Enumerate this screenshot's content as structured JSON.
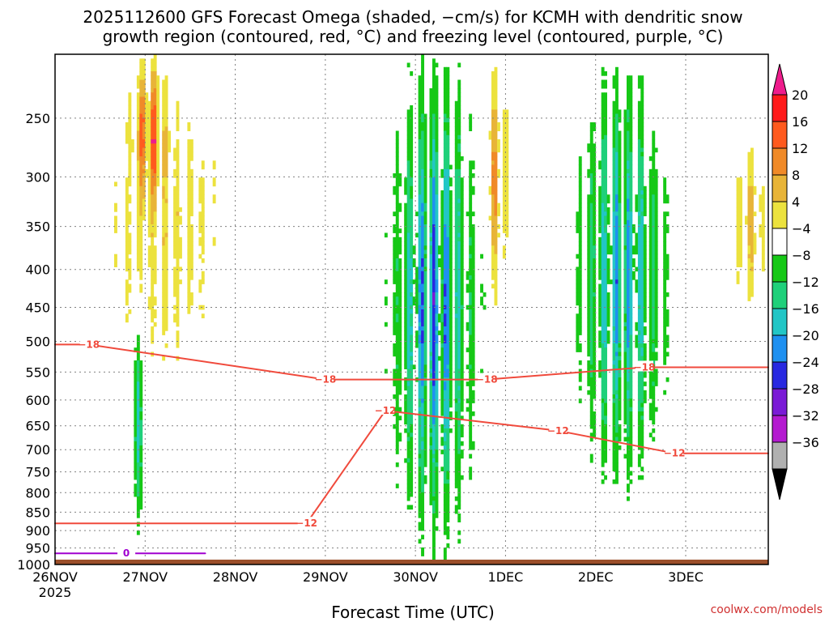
{
  "title_line1": "2025112600 GFS Forecast Omega (shaded, −cm/s) for KCMH with dendritic snow",
  "title_line2": "growth region (contoured, red, °C) and freezing level (contoured, purple, °C)",
  "xlabel": "Forecast Time (UTC)",
  "credit": "coolwx.com/models",
  "colors": {
    "dsg_contour": "#f04a3c",
    "freezing_contour": "#a000d0",
    "ground": "#9b4f2a",
    "grid": "#808080"
  },
  "chart_data": {
    "type": "heatmap",
    "title": "2025112600 GFS Forecast Omega (shaded, −cm/s) for KCMH with dendritic snow growth region (contoured, red, °C) and freezing level (contoured, purple, °C)",
    "xlabel": "Forecast Time (UTC)",
    "ylabel": "",
    "x_range_hours": [
      0,
      190
    ],
    "y_range_hPa": [
      1000,
      205
    ],
    "y_ticks": [
      250,
      300,
      350,
      400,
      450,
      500,
      550,
      600,
      650,
      700,
      750,
      800,
      850,
      900,
      950,
      1000
    ],
    "x_ticks": [
      {
        "hour": 0,
        "label": "26NOV",
        "sublabel": "2025"
      },
      {
        "hour": 24,
        "label": "27NOV",
        "sublabel": ""
      },
      {
        "hour": 48,
        "label": "28NOV",
        "sublabel": ""
      },
      {
        "hour": 72,
        "label": "29NOV",
        "sublabel": ""
      },
      {
        "hour": 96,
        "label": "30NOV",
        "sublabel": ""
      },
      {
        "hour": 120,
        "label": "1DEC",
        "sublabel": ""
      },
      {
        "hour": 144,
        "label": "2DEC",
        "sublabel": ""
      },
      {
        "hour": 168,
        "label": "3DEC",
        "sublabel": ""
      }
    ],
    "colorbar": {
      "levels": [
        20,
        16,
        12,
        8,
        4,
        -4,
        -8,
        -12,
        -16,
        -20,
        -24,
        -28,
        -32,
        -36
      ],
      "colors": [
        "#ff1a1a",
        "#ff5a1e",
        "#f08a28",
        "#e8b438",
        "#ece23e",
        "#ffffff",
        "#16c816",
        "#1fd07a",
        "#22c6c6",
        "#1e90f0",
        "#2828e0",
        "#7a1ad6",
        "#b41ad0",
        "#b0b0b0"
      ],
      "over_color": "#ee1c8c",
      "under_color": "#000000"
    },
    "contour_labels": [
      {
        "value": -18,
        "hour": 9,
        "p": 505
      },
      {
        "value": -18,
        "hour": 72,
        "p": 563
      },
      {
        "value": -18,
        "hour": 115,
        "p": 563
      },
      {
        "value": -18,
        "hour": 157,
        "p": 542
      },
      {
        "value": -12,
        "hour": 88,
        "p": 620
      },
      {
        "value": -12,
        "hour": 134,
        "p": 660
      },
      {
        "value": -12,
        "hour": 165,
        "p": 708
      },
      {
        "value": -12,
        "hour": 67,
        "p": 880
      },
      {
        "value": 0,
        "hour": 19,
        "p": 966
      }
    ],
    "omega_features": [
      {
        "kind": "ascent",
        "hour_start": 20,
        "hour_end": 30,
        "p_top": 205,
        "p_bottom": 330,
        "max": 20
      },
      {
        "kind": "ascent",
        "hour_start": 10,
        "hour_end": 48,
        "p_top": 205,
        "p_bottom": 600,
        "max": 8
      },
      {
        "kind": "descent",
        "hour_start": 20,
        "hour_end": 25,
        "p_top": 440,
        "p_bottom": 920,
        "min": -16
      },
      {
        "kind": "descent",
        "hour_start": 89,
        "hour_end": 113,
        "p_top": 210,
        "p_bottom": 940,
        "min": -24
      },
      {
        "kind": "ascent",
        "hour_start": 114,
        "hour_end": 121,
        "p_top": 205,
        "p_bottom": 450,
        "max": 16
      },
      {
        "kind": "descent",
        "hour_start": 138,
        "hour_end": 164,
        "p_top": 210,
        "p_bottom": 800,
        "min": -20
      },
      {
        "kind": "ascent",
        "hour_start": 180,
        "hour_end": 190,
        "p_top": 260,
        "p_bottom": 460,
        "max": 12
      }
    ]
  }
}
